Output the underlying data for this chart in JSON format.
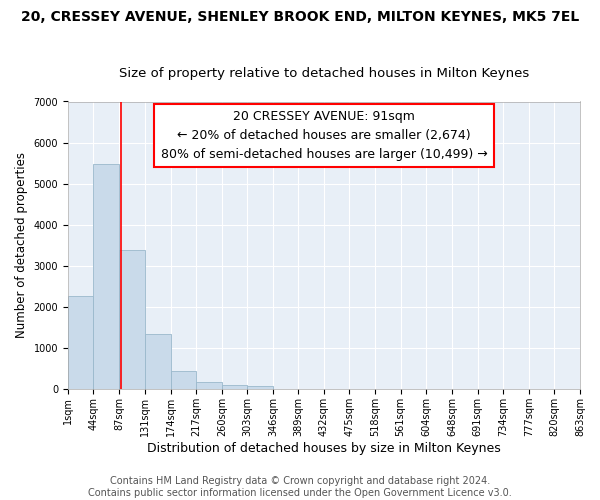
{
  "title": "20, CRESSEY AVENUE, SHENLEY BROOK END, MILTON KEYNES, MK5 7EL",
  "subtitle": "Size of property relative to detached houses in Milton Keynes",
  "xlabel": "Distribution of detached houses by size in Milton Keynes",
  "ylabel": "Number of detached properties",
  "footer_line1": "Contains HM Land Registry data © Crown copyright and database right 2024.",
  "footer_line2": "Contains public sector information licensed under the Open Government Licence v3.0.",
  "annotation_title": "20 CRESSEY AVENUE: 91sqm",
  "annotation_line1": "← 20% of detached houses are smaller (2,674)",
  "annotation_line2": "80% of semi-detached houses are larger (10,499) →",
  "bar_color": "#c9daea",
  "bar_edge_color": "#9ab8cc",
  "red_line_x": 91,
  "bin_edges": [
    1,
    44,
    87,
    131,
    174,
    217,
    260,
    303,
    346,
    389,
    432,
    475,
    518,
    561,
    604,
    648,
    691,
    734,
    777,
    820,
    863
  ],
  "bar_values": [
    2280,
    5480,
    3400,
    1350,
    450,
    175,
    100,
    75,
    0,
    0,
    0,
    0,
    0,
    0,
    0,
    0,
    0,
    0,
    0,
    0
  ],
  "ylim": [
    0,
    7000
  ],
  "yticks": [
    0,
    1000,
    2000,
    3000,
    4000,
    5000,
    6000,
    7000
  ],
  "fig_bg": "#ffffff",
  "axes_bg": "#e8eff7",
  "grid_color": "#ffffff",
  "title_fontsize": 10,
  "subtitle_fontsize": 9.5,
  "ylabel_fontsize": 8.5,
  "xlabel_fontsize": 9,
  "tick_fontsize": 7,
  "annotation_title_fontsize": 9,
  "annotation_body_fontsize": 8.5,
  "footer_fontsize": 7
}
